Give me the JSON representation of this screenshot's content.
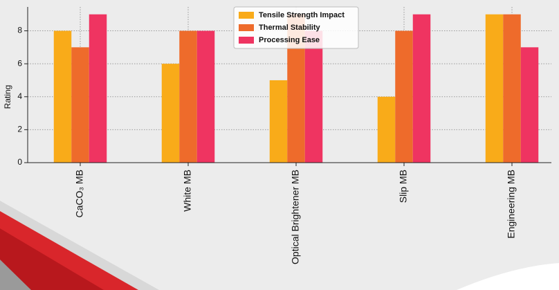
{
  "chart_data": {
    "type": "bar",
    "y_label": "Rating",
    "categories": [
      "CaCO₃ MB",
      "White MB",
      "Optical Brightener MB",
      "Slip MB",
      "Engineering MB"
    ],
    "series": [
      {
        "name": "Tensile Strength Impact",
        "color": "#f9ab19",
        "values": [
          8,
          6,
          5,
          4,
          9
        ]
      },
      {
        "name": "Thermal Stability",
        "color": "#ee6b2b",
        "values": [
          7,
          8,
          9,
          8,
          9
        ]
      },
      {
        "name": "Processing Ease",
        "color": "#ef3461",
        "values": [
          9,
          8,
          8,
          9,
          7
        ]
      }
    ],
    "ylim": [
      0,
      9.45
    ],
    "yticks": [
      0,
      2,
      4,
      6,
      8
    ],
    "grid": true
  }
}
